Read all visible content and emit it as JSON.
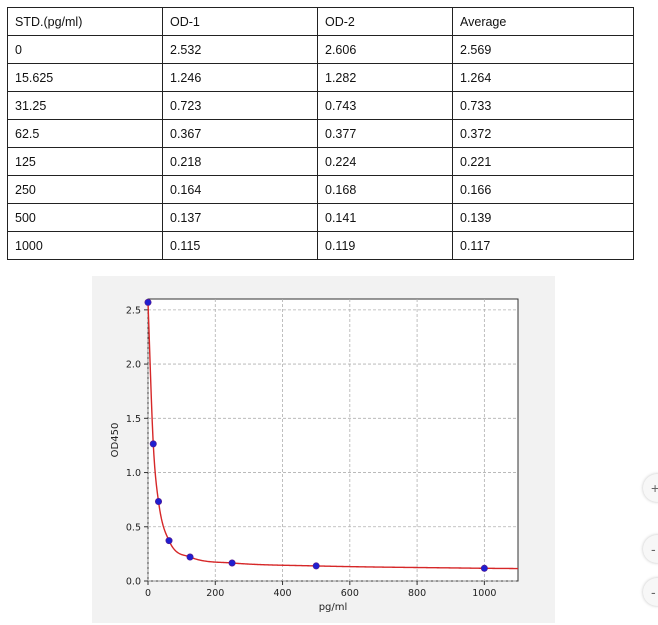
{
  "table": {
    "headers": [
      "STD.(pg/ml)",
      "OD-1",
      "OD-2",
      "Average"
    ],
    "rows": [
      [
        "0",
        "2.532",
        "2.606",
        "2.569"
      ],
      [
        "15.625",
        "1.246",
        "1.282",
        "1.264"
      ],
      [
        "31.25",
        "0.723",
        "0.743",
        "0.733"
      ],
      [
        "62.5",
        "0.367",
        "0.377",
        "0.372"
      ],
      [
        "125",
        "0.218",
        "0.224",
        "0.221"
      ],
      [
        "250",
        "0.164",
        "0.168",
        "0.166"
      ],
      [
        "500",
        "0.137",
        "0.141",
        "0.139"
      ],
      [
        "1000",
        "0.115",
        "0.119",
        "0.117"
      ]
    ]
  },
  "chart_data": {
    "type": "scatter",
    "title": "",
    "xlabel": "pg/ml",
    "ylabel": "OD450",
    "xlim": [
      0,
      1100
    ],
    "ylim": [
      0,
      2.6
    ],
    "x_ticks": [
      0,
      200,
      400,
      600,
      800,
      1000
    ],
    "y_ticks": [
      "0.0",
      "0.5",
      "1.0",
      "1.5",
      "2.0",
      "2.5"
    ],
    "grid": true,
    "series": [
      {
        "x": [
          0,
          15.625,
          31.25,
          62.5,
          125,
          250,
          500,
          1000
        ],
        "y": [
          2.569,
          1.264,
          0.733,
          0.372,
          0.221,
          0.166,
          0.139,
          0.117
        ],
        "color": "#1f1fd0",
        "marker": "circle"
      }
    ],
    "fit_curve": {
      "color": "#d62728"
    }
  },
  "side_buttons": [
    {
      "icon": "plus-icon",
      "glyph": "+"
    },
    {
      "icon": "minus-icon",
      "glyph": "-"
    },
    {
      "icon": "minus-icon",
      "glyph": "-"
    }
  ]
}
